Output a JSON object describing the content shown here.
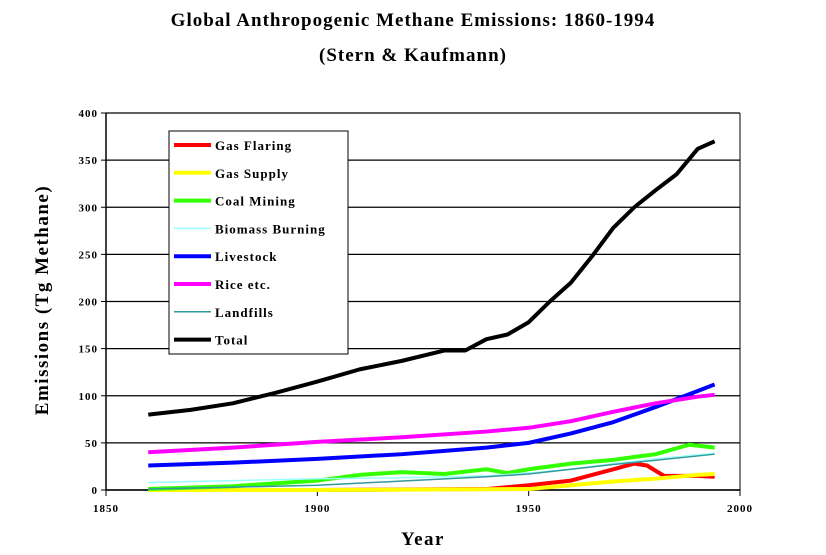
{
  "chart_data": {
    "type": "line",
    "title": "Global Anthropogenic Methane Emissions: 1860-1994",
    "subtitle": "(Stern & Kaufmann)",
    "xlabel": "Year",
    "ylabel": "Emissions (Tg Methane)",
    "xlim": [
      1850,
      2000
    ],
    "ylim": [
      0,
      400
    ],
    "xticks": [
      1850,
      1900,
      1950,
      2000
    ],
    "yticks": [
      0,
      50,
      100,
      150,
      200,
      250,
      300,
      350,
      400
    ],
    "grid": "horizontal",
    "legend": "top-left",
    "series": [
      {
        "name": "Gas Flaring",
        "color": "#ff0000",
        "x": [
          1860,
          1900,
          1940,
          1950,
          1960,
          1970,
          1975,
          1978,
          1982,
          1990,
          1994
        ],
        "y": [
          0,
          0,
          1,
          5,
          10,
          22,
          28,
          26,
          15,
          15,
          14
        ]
      },
      {
        "name": "Gas Supply",
        "color": "#ffff00",
        "x": [
          1860,
          1900,
          1950,
          1960,
          1970,
          1980,
          1990,
          1994
        ],
        "y": [
          0,
          0,
          1,
          5,
          9,
          12,
          16,
          17
        ]
      },
      {
        "name": "Coal Mining",
        "color": "#33ff00",
        "x": [
          1860,
          1880,
          1900,
          1910,
          1920,
          1930,
          1940,
          1945,
          1950,
          1960,
          1970,
          1980,
          1988,
          1994
        ],
        "y": [
          1,
          4,
          10,
          16,
          19,
          17,
          22,
          18,
          22,
          28,
          32,
          38,
          48,
          45
        ]
      },
      {
        "name": "Biomass Burning",
        "color": "#99ffff",
        "x": [
          1860,
          1900,
          1920,
          1940,
          1950,
          1960,
          1970,
          1980,
          1994
        ],
        "y": [
          8,
          12,
          13,
          15,
          18,
          22,
          28,
          33,
          39
        ]
      },
      {
        "name": "Livestock",
        "color": "#0000ff",
        "x": [
          1860,
          1880,
          1900,
          1920,
          1940,
          1950,
          1960,
          1970,
          1980,
          1990,
          1994
        ],
        "y": [
          26,
          29,
          33,
          38,
          45,
          50,
          60,
          72,
          88,
          105,
          112
        ]
      },
      {
        "name": "Rice etc.",
        "color": "#ff00ff",
        "x": [
          1860,
          1880,
          1900,
          1920,
          1940,
          1950,
          1960,
          1970,
          1980,
          1990,
          1994
        ],
        "y": [
          40,
          45,
          51,
          56,
          62,
          66,
          73,
          83,
          92,
          99,
          101
        ]
      },
      {
        "name": "Landfills",
        "color": "#339999",
        "x": [
          1860,
          1900,
          1940,
          1950,
          1970,
          1994
        ],
        "y": [
          1,
          5,
          14,
          17,
          27,
          38
        ]
      },
      {
        "name": "Total",
        "color": "#000000",
        "x": [
          1860,
          1870,
          1880,
          1890,
          1900,
          1910,
          1920,
          1930,
          1935,
          1940,
          1945,
          1950,
          1955,
          1960,
          1965,
          1970,
          1975,
          1980,
          1985,
          1990,
          1994
        ],
        "y": [
          80,
          85,
          92,
          103,
          115,
          128,
          137,
          148,
          148,
          160,
          165,
          178,
          200,
          220,
          248,
          278,
          300,
          318,
          335,
          362,
          370
        ]
      }
    ]
  }
}
